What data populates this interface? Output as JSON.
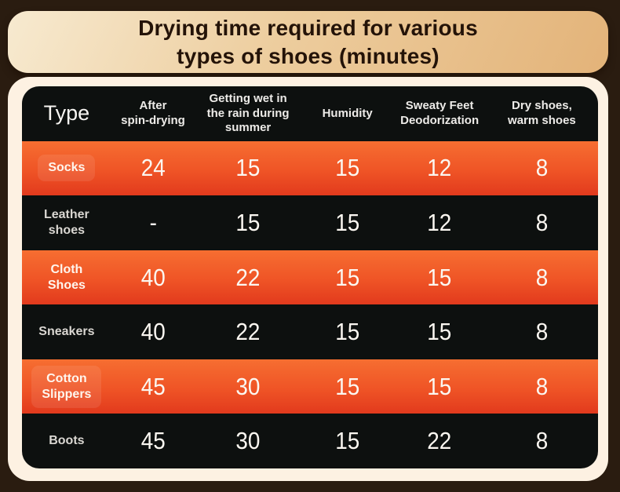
{
  "page": {
    "background": "#2a1c10",
    "panel_cream": "#fdf1e2"
  },
  "title_panel": {
    "text": "Drying time required for various\ntypes of shoes (minutes)",
    "bg_from": "#f7ead0",
    "bg_to": "#e3b379",
    "text_color": "#241308"
  },
  "table": {
    "header_bg": "#0d100f",
    "dark_row_bg": "#0d100f",
    "orange_row_top": "#f66e31",
    "orange_row_bottom": "#e23a1d",
    "text_color": "#f3f0ec",
    "columns": [
      "Type",
      "After\nspin-drying",
      "Getting wet in\nthe rain during\nsummer",
      "Humidity",
      "Sweaty Feet\nDeodorization",
      "Dry shoes,\nwarm shoes"
    ],
    "rows": [
      {
        "type": "Socks",
        "values": [
          "24",
          "15",
          "15",
          "12",
          "8"
        ]
      },
      {
        "type": "Leather\nshoes",
        "values": [
          "-",
          "15",
          "15",
          "12",
          "8"
        ]
      },
      {
        "type": "Cloth Shoes",
        "values": [
          "40",
          "22",
          "15",
          "15",
          "8"
        ]
      },
      {
        "type": "Sneakers",
        "values": [
          "40",
          "22",
          "15",
          "15",
          "8"
        ]
      },
      {
        "type": "Cotton\nSlippers",
        "values": [
          "45",
          "30",
          "15",
          "15",
          "8"
        ]
      },
      {
        "type": "Boots",
        "values": [
          "45",
          "30",
          "15",
          "22",
          "8"
        ]
      }
    ]
  },
  "chart_data": {
    "type": "table",
    "title": "Drying time required for various types of shoes (minutes)",
    "unit": "minutes",
    "columns": [
      "Type",
      "After spin-drying",
      "Getting wet in the rain during summer",
      "Humidity",
      "Sweaty Feet Deodorization",
      "Dry shoes, warm shoes"
    ],
    "rows": [
      [
        "Socks",
        24,
        15,
        15,
        12,
        8
      ],
      [
        "Leather shoes",
        "-",
        15,
        15,
        12,
        8
      ],
      [
        "Cloth Shoes",
        40,
        22,
        15,
        15,
        8
      ],
      [
        "Sneakers",
        40,
        22,
        15,
        15,
        8
      ],
      [
        "Cotton Slippers",
        45,
        30,
        15,
        15,
        8
      ],
      [
        "Boots",
        45,
        30,
        15,
        22,
        8
      ]
    ]
  }
}
